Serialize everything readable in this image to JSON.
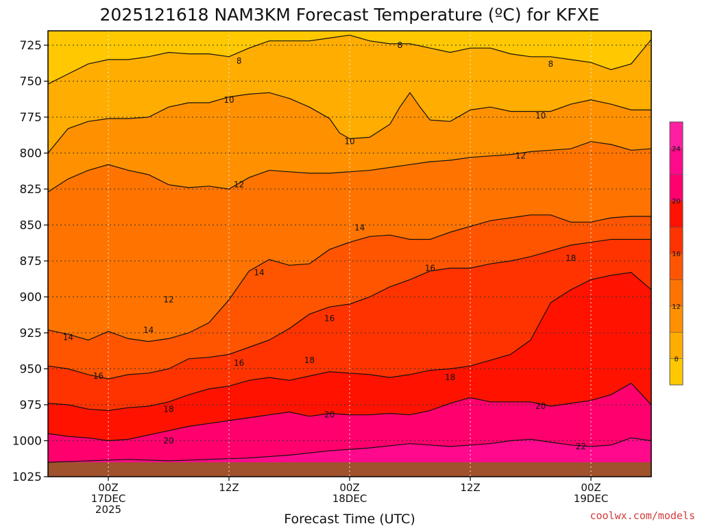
{
  "chart_data": {
    "type": "heatmap",
    "title": "2025121618 NAM3KM Forecast Temperature (ºC) for KFXE",
    "xlabel": "Forecast Time (UTC)",
    "ylabel": "",
    "credit": "coolwx.com/models",
    "y_axis": {
      "unit": "hPa",
      "ylim": [
        1025,
        715
      ],
      "ticks": [
        725,
        750,
        775,
        800,
        825,
        850,
        875,
        900,
        925,
        950,
        975,
        1000,
        1025
      ]
    },
    "x_axis": {
      "ticks": [
        {
          "hour": 6,
          "lines": [
            "00Z",
            "17DEC",
            "2025"
          ]
        },
        {
          "hour": 18,
          "lines": [
            "12Z"
          ]
        },
        {
          "hour": 30,
          "lines": [
            "00Z",
            "18DEC"
          ]
        },
        {
          "hour": 42,
          "lines": [
            "12Z"
          ]
        },
        {
          "hour": 54,
          "lines": [
            "00Z",
            "19DEC"
          ]
        }
      ],
      "xlim": [
        0,
        60
      ]
    },
    "grid": true,
    "colorbar": {
      "levels": [
        8,
        10,
        12,
        14,
        16,
        18,
        20,
        22,
        24
      ],
      "colors": [
        "#ffc800",
        "#ffad00",
        "#ff9100",
        "#ff7400",
        "#ff5500",
        "#ff3300",
        "#ff1200",
        "#ff006e",
        "#ff0a8c",
        "#ff1fa0"
      ]
    },
    "contours": [
      {
        "level": 8,
        "points": [
          [
            0,
            752
          ],
          [
            2,
            745
          ],
          [
            4,
            738
          ],
          [
            6,
            735
          ],
          [
            8,
            735
          ],
          [
            10,
            733
          ],
          [
            12,
            730
          ],
          [
            14,
            731
          ],
          [
            16,
            731
          ],
          [
            18,
            733
          ],
          [
            20,
            727
          ],
          [
            22,
            722
          ],
          [
            24,
            722
          ],
          [
            26,
            722
          ],
          [
            28,
            720
          ],
          [
            30,
            718
          ],
          [
            32,
            722
          ],
          [
            34,
            724
          ],
          [
            36,
            724
          ],
          [
            38,
            727
          ],
          [
            40,
            730
          ],
          [
            42,
            727
          ],
          [
            44,
            727
          ],
          [
            46,
            731
          ],
          [
            48,
            733
          ],
          [
            50,
            733
          ],
          [
            52,
            735
          ],
          [
            54,
            737
          ],
          [
            56,
            742
          ],
          [
            58,
            738
          ],
          [
            60,
            721
          ]
        ]
      },
      {
        "level": 10,
        "points": [
          [
            0,
            800
          ],
          [
            2,
            783
          ],
          [
            4,
            778
          ],
          [
            6,
            776
          ],
          [
            8,
            776
          ],
          [
            10,
            775
          ],
          [
            12,
            768
          ],
          [
            14,
            765
          ],
          [
            16,
            765
          ],
          [
            18,
            761
          ],
          [
            20,
            759
          ],
          [
            22,
            758
          ],
          [
            24,
            762
          ],
          [
            26,
            768
          ],
          [
            28,
            776
          ],
          [
            29,
            786
          ],
          [
            30,
            790
          ],
          [
            32,
            789
          ],
          [
            34,
            780
          ],
          [
            35,
            768
          ],
          [
            36,
            758
          ],
          [
            37,
            768
          ],
          [
            38,
            777
          ],
          [
            40,
            778
          ],
          [
            42,
            770
          ],
          [
            44,
            768
          ],
          [
            46,
            771
          ],
          [
            48,
            771
          ],
          [
            50,
            771
          ],
          [
            52,
            766
          ],
          [
            54,
            763
          ],
          [
            56,
            766
          ],
          [
            58,
            770
          ],
          [
            60,
            770
          ]
        ]
      },
      {
        "level": 12,
        "points": [
          [
            0,
            827
          ],
          [
            2,
            818
          ],
          [
            4,
            812
          ],
          [
            6,
            808
          ],
          [
            8,
            812
          ],
          [
            10,
            815
          ],
          [
            12,
            822
          ],
          [
            14,
            824
          ],
          [
            16,
            823
          ],
          [
            18,
            825
          ],
          [
            20,
            817
          ],
          [
            22,
            812
          ],
          [
            24,
            813
          ],
          [
            26,
            814
          ],
          [
            28,
            814
          ],
          [
            30,
            813
          ],
          [
            32,
            812
          ],
          [
            34,
            810
          ],
          [
            36,
            808
          ],
          [
            38,
            806
          ],
          [
            40,
            805
          ],
          [
            42,
            803
          ],
          [
            44,
            802
          ],
          [
            46,
            801
          ],
          [
            48,
            799
          ],
          [
            50,
            798
          ],
          [
            52,
            797
          ],
          [
            54,
            792
          ],
          [
            56,
            794
          ],
          [
            58,
            798
          ],
          [
            60,
            797
          ]
        ]
      },
      {
        "level": 14,
        "points": [
          [
            0,
            923
          ],
          [
            2,
            926
          ],
          [
            4,
            930
          ],
          [
            6,
            924
          ],
          [
            8,
            929
          ],
          [
            10,
            931
          ],
          [
            12,
            929
          ],
          [
            14,
            925
          ],
          [
            16,
            918
          ],
          [
            18,
            902
          ],
          [
            20,
            882
          ],
          [
            22,
            874
          ],
          [
            24,
            878
          ],
          [
            26,
            877
          ],
          [
            28,
            867
          ],
          [
            30,
            862
          ],
          [
            32,
            858
          ],
          [
            34,
            857
          ],
          [
            36,
            860
          ],
          [
            38,
            860
          ],
          [
            40,
            855
          ],
          [
            42,
            851
          ],
          [
            44,
            847
          ],
          [
            46,
            845
          ],
          [
            48,
            843
          ],
          [
            50,
            843
          ],
          [
            52,
            848
          ],
          [
            54,
            848
          ],
          [
            56,
            845
          ],
          [
            58,
            844
          ],
          [
            60,
            844
          ]
        ]
      },
      {
        "level": 16,
        "points": [
          [
            0,
            948
          ],
          [
            2,
            950
          ],
          [
            4,
            954
          ],
          [
            6,
            957
          ],
          [
            8,
            954
          ],
          [
            10,
            953
          ],
          [
            12,
            950
          ],
          [
            14,
            943
          ],
          [
            16,
            942
          ],
          [
            18,
            940
          ],
          [
            20,
            935
          ],
          [
            22,
            930
          ],
          [
            24,
            922
          ],
          [
            26,
            912
          ],
          [
            28,
            907
          ],
          [
            30,
            905
          ],
          [
            32,
            900
          ],
          [
            34,
            893
          ],
          [
            36,
            888
          ],
          [
            38,
            882
          ],
          [
            40,
            880
          ],
          [
            42,
            880
          ],
          [
            44,
            877
          ],
          [
            46,
            875
          ],
          [
            48,
            872
          ],
          [
            50,
            868
          ],
          [
            52,
            864
          ],
          [
            54,
            862
          ],
          [
            56,
            860
          ],
          [
            58,
            860
          ],
          [
            60,
            860
          ]
        ]
      },
      {
        "level": 18,
        "points": [
          [
            0,
            974
          ],
          [
            2,
            975
          ],
          [
            4,
            978
          ],
          [
            6,
            979
          ],
          [
            8,
            977
          ],
          [
            10,
            976
          ],
          [
            12,
            973
          ],
          [
            14,
            968
          ],
          [
            16,
            964
          ],
          [
            18,
            962
          ],
          [
            20,
            958
          ],
          [
            22,
            956
          ],
          [
            24,
            958
          ],
          [
            26,
            955
          ],
          [
            28,
            952
          ],
          [
            30,
            953
          ],
          [
            32,
            954
          ],
          [
            34,
            956
          ],
          [
            36,
            954
          ],
          [
            38,
            951
          ],
          [
            40,
            950
          ],
          [
            42,
            948
          ],
          [
            44,
            944
          ],
          [
            46,
            940
          ],
          [
            48,
            930
          ],
          [
            50,
            904
          ],
          [
            52,
            895
          ],
          [
            54,
            888
          ],
          [
            56,
            885
          ],
          [
            58,
            883
          ],
          [
            60,
            895
          ]
        ]
      },
      {
        "level": 20,
        "points": [
          [
            0,
            995
          ],
          [
            2,
            997
          ],
          [
            4,
            998
          ],
          [
            6,
            1000
          ],
          [
            8,
            999
          ],
          [
            10,
            996
          ],
          [
            12,
            993
          ],
          [
            14,
            990
          ],
          [
            16,
            988
          ],
          [
            18,
            986
          ],
          [
            20,
            984
          ],
          [
            22,
            982
          ],
          [
            24,
            980
          ],
          [
            26,
            983
          ],
          [
            28,
            981
          ],
          [
            30,
            982
          ],
          [
            32,
            982
          ],
          [
            34,
            981
          ],
          [
            36,
            982
          ],
          [
            38,
            979
          ],
          [
            40,
            974
          ],
          [
            42,
            970
          ],
          [
            44,
            973
          ],
          [
            46,
            973
          ],
          [
            48,
            973
          ],
          [
            50,
            976
          ],
          [
            52,
            974
          ],
          [
            54,
            972
          ],
          [
            56,
            968
          ],
          [
            58,
            960
          ],
          [
            60,
            975
          ]
        ]
      },
      {
        "level": 22,
        "points": [
          [
            0,
            1015
          ],
          [
            4,
            1014
          ],
          [
            8,
            1013
          ],
          [
            12,
            1014
          ],
          [
            16,
            1013
          ],
          [
            20,
            1012
          ],
          [
            24,
            1010
          ],
          [
            28,
            1007
          ],
          [
            32,
            1005
          ],
          [
            36,
            1002
          ],
          [
            40,
            1004
          ],
          [
            42,
            1003
          ],
          [
            44,
            1002
          ],
          [
            46,
            1000
          ],
          [
            48,
            999
          ],
          [
            50,
            1001
          ],
          [
            52,
            1003
          ],
          [
            54,
            1004
          ],
          [
            56,
            1003
          ],
          [
            58,
            998
          ],
          [
            60,
            1000
          ]
        ]
      }
    ],
    "contour_labels": [
      {
        "text": "8",
        "x": 19,
        "y": 736
      },
      {
        "text": "8",
        "x": 35,
        "y": 725
      },
      {
        "text": "8",
        "x": 50,
        "y": 738
      },
      {
        "text": "10",
        "x": 18,
        "y": 763
      },
      {
        "text": "10",
        "x": 30,
        "y": 792
      },
      {
        "text": "10",
        "x": 49,
        "y": 774
      },
      {
        "text": "12",
        "x": 19,
        "y": 822
      },
      {
        "text": "12",
        "x": 47,
        "y": 802
      },
      {
        "text": "12",
        "x": 12,
        "y": 902
      },
      {
        "text": "14",
        "x": 31,
        "y": 852
      },
      {
        "text": "14",
        "x": 21,
        "y": 883
      },
      {
        "text": "14",
        "x": 10,
        "y": 923
      },
      {
        "text": "14",
        "x": 2,
        "y": 928
      },
      {
        "text": "16",
        "x": 38,
        "y": 880
      },
      {
        "text": "16",
        "x": 28,
        "y": 915
      },
      {
        "text": "16",
        "x": 19,
        "y": 946
      },
      {
        "text": "16",
        "x": 5,
        "y": 955
      },
      {
        "text": "18",
        "x": 52,
        "y": 873
      },
      {
        "text": "18",
        "x": 26,
        "y": 944
      },
      {
        "text": "18",
        "x": 40,
        "y": 956
      },
      {
        "text": "18",
        "x": 12,
        "y": 978
      },
      {
        "text": "20",
        "x": 28,
        "y": 982
      },
      {
        "text": "20",
        "x": 49,
        "y": 976
      },
      {
        "text": "20",
        "x": 12,
        "y": 1000
      },
      {
        "text": "22",
        "x": 53,
        "y": 1004
      }
    ],
    "surface": {
      "top": 1015,
      "color": "#a0522d"
    }
  }
}
